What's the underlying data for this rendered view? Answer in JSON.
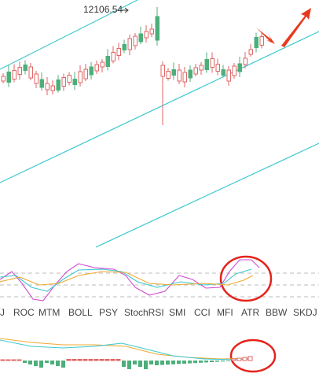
{
  "price_label": "12106.54",
  "tabs": [
    "J",
    "ROC",
    "MTM",
    "BOLL",
    "PSY",
    "StochRSI",
    "SMI",
    "CCI",
    "MFI",
    "ATR",
    "BBW",
    "SKDJ"
  ]
}
